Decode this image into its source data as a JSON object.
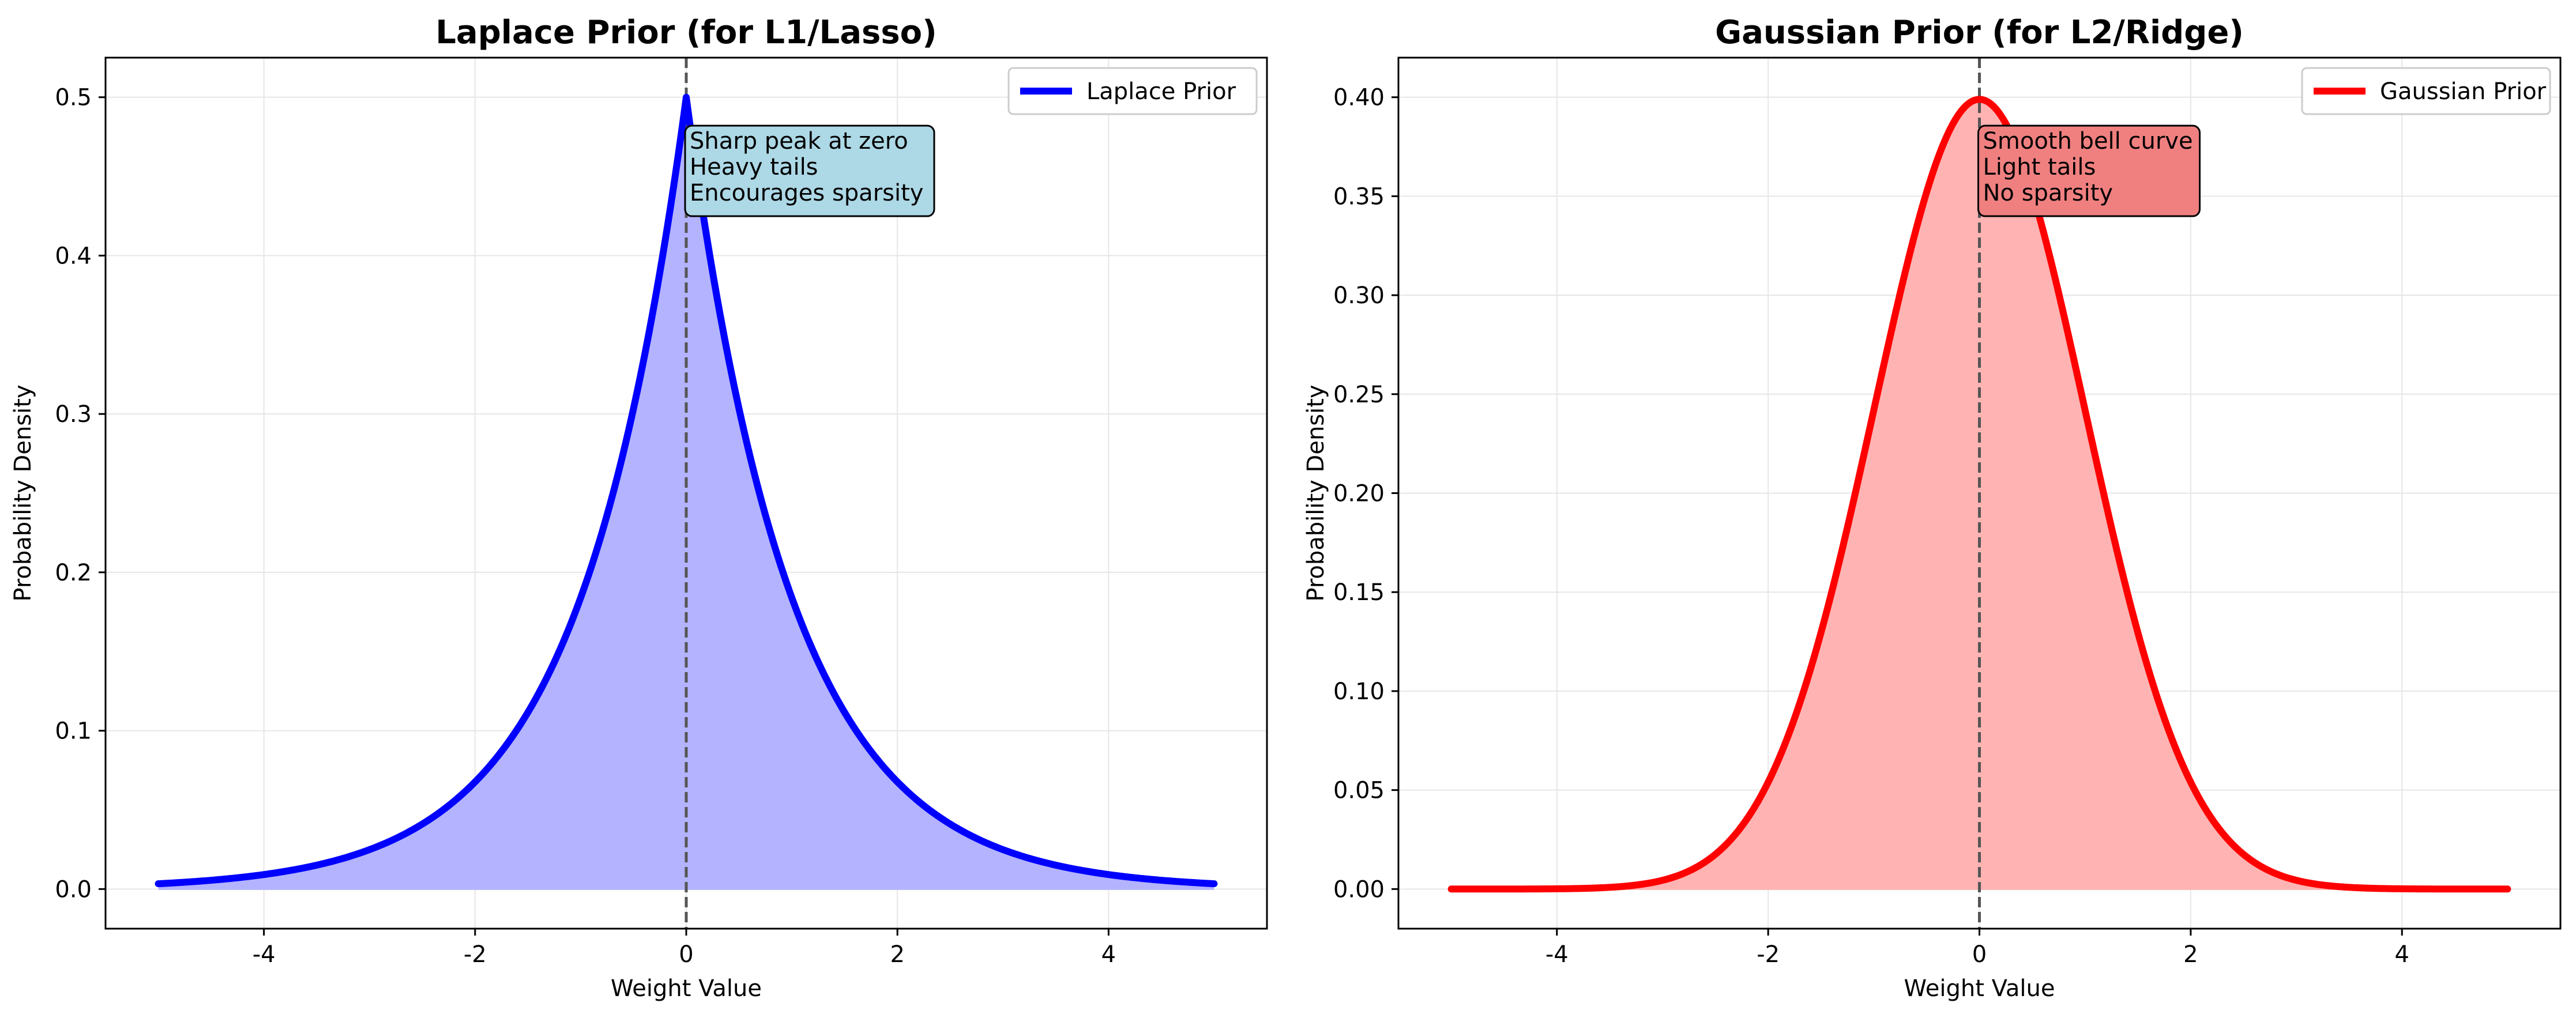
{
  "chart_data": [
    {
      "type": "area",
      "title": "Laplace Prior (for L1/Lasso)",
      "xlabel": "Weight Value",
      "ylabel": "Probability Density",
      "xlim": [
        -5.5,
        5.5
      ],
      "ylim": [
        -0.025,
        0.525
      ],
      "xticks": [
        -4,
        -2,
        0,
        2,
        4
      ],
      "xtick_labels": [
        "-4",
        "-2",
        "0",
        "2",
        "4"
      ],
      "yticks": [
        0.0,
        0.1,
        0.2,
        0.3,
        0.4,
        0.5
      ],
      "ytick_labels": [
        "0.0",
        "0.1",
        "0.2",
        "0.3",
        "0.4",
        "0.5"
      ],
      "grid": true,
      "legend_position": "top-right",
      "series": [
        {
          "name": "Laplace Prior",
          "color": "#0000ff",
          "fill_color": "#b3b3ff",
          "x": [
            -5,
            -4.5,
            -4,
            -3.5,
            -3,
            -2.5,
            -2,
            -1.5,
            -1,
            -0.75,
            -0.5,
            -0.25,
            0,
            0.25,
            0.5,
            0.75,
            1,
            1.5,
            2,
            2.5,
            3,
            3.5,
            4,
            4.5,
            5
          ],
          "y": [
            0.0034,
            0.0056,
            0.0092,
            0.0151,
            0.0249,
            0.041,
            0.0677,
            0.1116,
            0.1839,
            0.2362,
            0.3033,
            0.3894,
            0.5,
            0.3894,
            0.3033,
            0.2362,
            0.1839,
            0.1116,
            0.0677,
            0.041,
            0.0249,
            0.0151,
            0.0092,
            0.0056,
            0.0034
          ]
        }
      ],
      "vline": {
        "x": 0,
        "style": "dashed",
        "color": "#555555"
      },
      "annotation": {
        "lines": [
          "Sharp peak at zero",
          "Heavy tails",
          "Encourages sparsity"
        ],
        "x": 0,
        "y": 0.45,
        "box_color": "#add8e6"
      }
    },
    {
      "type": "area",
      "title": "Gaussian Prior (for L2/Ridge)",
      "xlabel": "Weight Value",
      "ylabel": "Probability Density",
      "xlim": [
        -5.5,
        5.5
      ],
      "ylim": [
        -0.02,
        0.42
      ],
      "xticks": [
        -4,
        -2,
        0,
        2,
        4
      ],
      "xtick_labels": [
        "-4",
        "-2",
        "0",
        "2",
        "4"
      ],
      "yticks": [
        0.0,
        0.05,
        0.1,
        0.15,
        0.2,
        0.25,
        0.3,
        0.35,
        0.4
      ],
      "ytick_labels": [
        "0.00",
        "0.05",
        "0.10",
        "0.15",
        "0.20",
        "0.25",
        "0.30",
        "0.35",
        "0.40"
      ],
      "grid": true,
      "legend_position": "top-right",
      "series": [
        {
          "name": "Gaussian Prior",
          "color": "#ff0000",
          "fill_color": "#ffb3b3",
          "x": [
            -5,
            -4.5,
            -4,
            -3.5,
            -3,
            -2.5,
            -2,
            -1.5,
            -1,
            -0.75,
            -0.5,
            -0.25,
            0,
            0.25,
            0.5,
            0.75,
            1,
            1.5,
            2,
            2.5,
            3,
            3.5,
            4,
            4.5,
            5
          ],
          "y": [
            0.0,
            0.0,
            0.0001,
            0.0009,
            0.0044,
            0.0175,
            0.054,
            0.1295,
            0.242,
            0.3011,
            0.3521,
            0.3867,
            0.3989,
            0.3867,
            0.3521,
            0.3011,
            0.242,
            0.1295,
            0.054,
            0.0175,
            0.0044,
            0.0009,
            0.0001,
            0.0,
            0.0
          ]
        }
      ],
      "vline": {
        "x": 0,
        "style": "dashed",
        "color": "#555555"
      },
      "annotation": {
        "lines": [
          "Smooth bell curve",
          "Light tails",
          "No sparsity"
        ],
        "x": 0,
        "y": 0.36,
        "box_color": "#f08080"
      }
    }
  ]
}
